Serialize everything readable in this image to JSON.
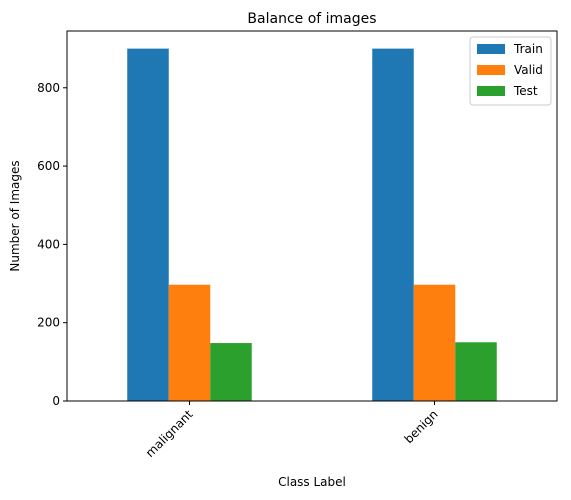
{
  "chart_data": {
    "type": "bar",
    "title": "Balance of images",
    "xlabel": "Class Label",
    "ylabel": "Number of Images",
    "categories": [
      "malignant",
      "benign"
    ],
    "ylim": [
      0,
      945
    ],
    "yticks": [
      0,
      200,
      400,
      600,
      800
    ],
    "legend_placement": "top-right",
    "grid": false,
    "series": [
      {
        "name": "Train",
        "values": [
          900,
          900
        ],
        "color": "#1f77b4"
      },
      {
        "name": "Valid",
        "values": [
          297,
          297
        ],
        "color": "#ff7f0e"
      },
      {
        "name": "Test",
        "values": [
          148,
          150
        ],
        "color": "#2ca02c"
      }
    ]
  }
}
